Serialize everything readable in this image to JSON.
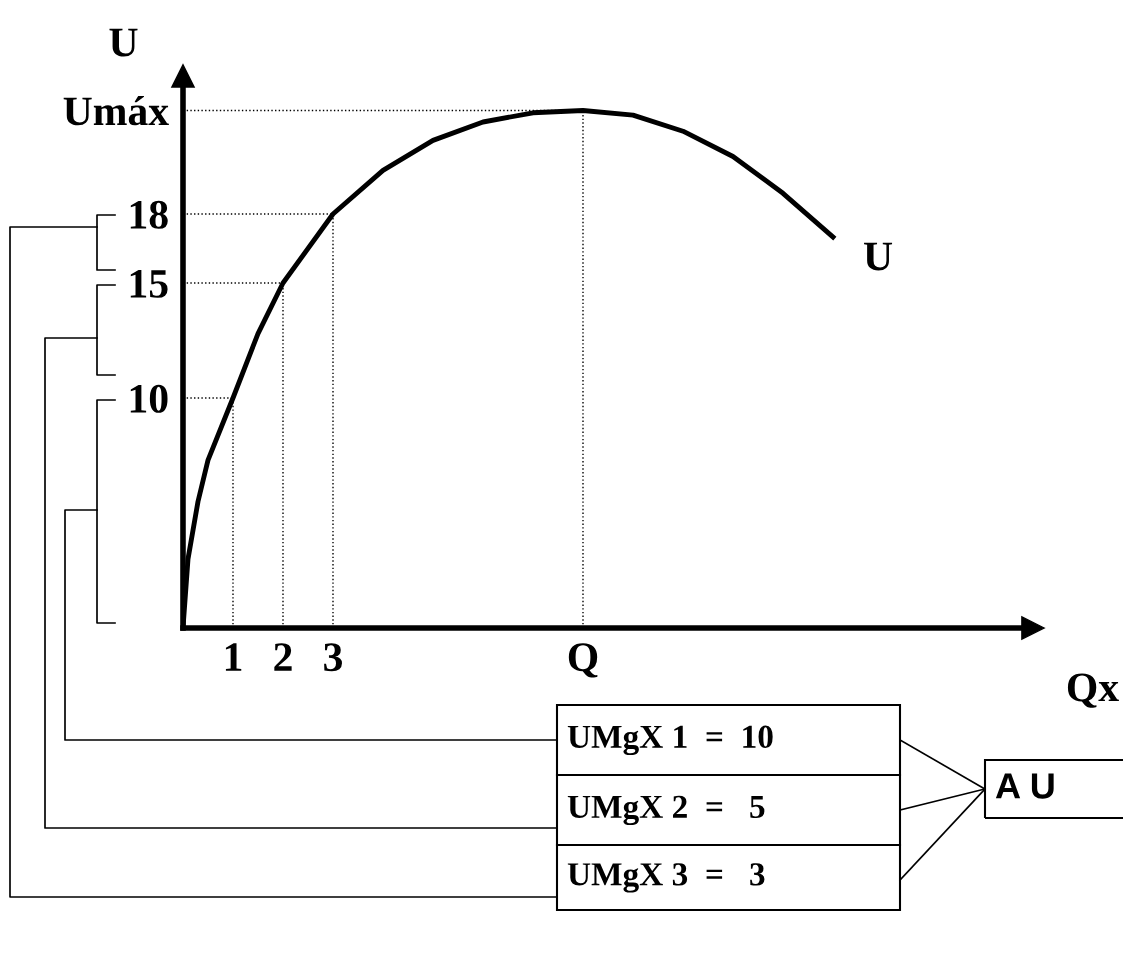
{
  "chart_data": {
    "type": "line",
    "xlabel": "Qx",
    "ylabel": "U",
    "xlim": [
      0,
      17
    ],
    "ylim": [
      0,
      24
    ],
    "xticks": [
      1,
      2,
      3,
      {
        "value": 8,
        "label": "Q"
      }
    ],
    "yticks": [
      10,
      15,
      18,
      {
        "value": 22.5,
        "label": "Umáx"
      }
    ],
    "grid": false,
    "legend": false,
    "marker": "none",
    "series": [
      {
        "name": "U",
        "color": "#000000",
        "line_style": "solid",
        "x": [
          0,
          0.1,
          0.3,
          0.5,
          1,
          1.5,
          2,
          3,
          4,
          5,
          6,
          7,
          8,
          9,
          10,
          11,
          12,
          13
        ],
        "values": [
          0,
          3,
          5.5,
          7.3,
          10,
          12.8,
          15,
          18,
          19.9,
          21.2,
          22,
          22.4,
          22.5,
          22.3,
          21.6,
          20.5,
          18.9,
          17
        ]
      },
      {
        "color": "#000000",
        "line_style": "dotted",
        "x": [
          1,
          1
        ],
        "values": [
          0,
          10
        ]
      },
      {
        "color": "#000000",
        "line_style": "dotted",
        "x": [
          2,
          2
        ],
        "values": [
          0,
          15
        ]
      },
      {
        "color": "#000000",
        "line_style": "dotted",
        "x": [
          3,
          3
        ],
        "values": [
          0,
          18
        ]
      },
      {
        "color": "#000000",
        "line_style": "dotted",
        "x": [
          8,
          8
        ],
        "values": [
          0,
          22.5
        ]
      },
      {
        "color": "#000000",
        "line_style": "dotted",
        "x": [
          0,
          1
        ],
        "values": [
          10,
          10
        ]
      },
      {
        "color": "#000000",
        "line_style": "dotted",
        "x": [
          0,
          2
        ],
        "values": [
          15,
          15
        ]
      },
      {
        "color": "#000000",
        "line_style": "dotted",
        "x": [
          0,
          3
        ],
        "values": [
          18,
          18
        ]
      },
      {
        "color": "#000000",
        "line_style": "dotted",
        "x": [
          0,
          8
        ],
        "values": [
          22.5,
          22.5
        ]
      }
    ],
    "annotations": [
      "UMgX 1  =  10",
      "UMgX 2  =   5",
      "UMgX 3  =   3",
      "A U"
    ]
  }
}
